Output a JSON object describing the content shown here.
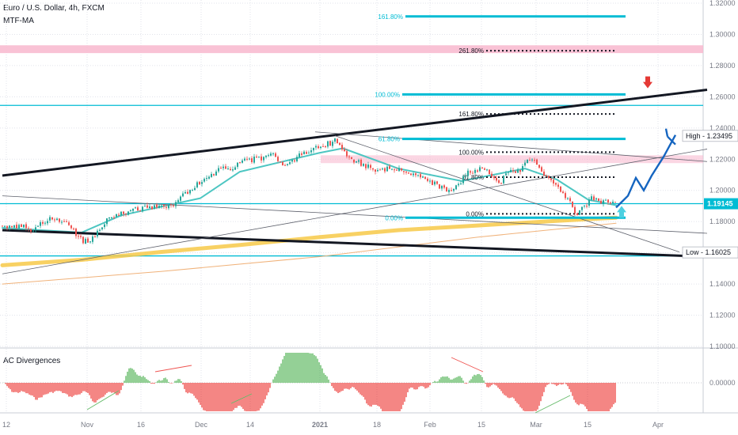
{
  "header": {
    "title": "Euro / U.S. Dollar, 4h, FXCM",
    "indicator": "MTF-MA",
    "oscillator": "AC Divergences"
  },
  "colors": {
    "background": "#ffffff",
    "grid": "#e1e3eb",
    "bull": "#26a69a",
    "bear": "#ef5350",
    "ma_fast": "#4dc6c2",
    "ma_slow": "#f7c948",
    "ma_thin": "#f0b27a",
    "support": "#00bcd4",
    "trend": "#131722",
    "pink_zone": "#f8bbd0",
    "projection": "#1565c0",
    "arrow_down": "#e53935",
    "arrow_up": "#4dd0e1",
    "osc_pos": "#66bb6a",
    "osc_neg": "#ef5350"
  },
  "chart_data": [
    {
      "type": "candlestick",
      "symbol": "Euro / U.S. Dollar",
      "timeframe": "4h",
      "source": "FXCM",
      "x_ticks": [
        "12",
        "Nov",
        "16",
        "Dec",
        "14",
        "2021",
        "18",
        "Feb",
        "15",
        "Mar",
        "15",
        "Apr"
      ],
      "y_ticks": [
        "1.32000",
        "1.30000",
        "1.28000",
        "1.26000",
        "1.24000",
        "1.22000",
        "1.20000",
        "1.18000",
        "1.16000",
        "1.14000",
        "1.12000",
        "1.10000"
      ],
      "ylim": [
        1.1,
        1.32
      ],
      "price_path": [
        {
          "i": 0,
          "p": 1.1775
        },
        {
          "i": 10,
          "p": 1.1765
        },
        {
          "i": 22,
          "p": 1.1778
        },
        {
          "i": 35,
          "p": 1.1745
        },
        {
          "i": 50,
          "p": 1.1795
        },
        {
          "i": 62,
          "p": 1.1825
        },
        {
          "i": 72,
          "p": 1.1805
        },
        {
          "i": 85,
          "p": 1.177
        },
        {
          "i": 97,
          "p": 1.169
        },
        {
          "i": 110,
          "p": 1.166
        },
        {
          "i": 118,
          "p": 1.1715
        },
        {
          "i": 130,
          "p": 1.18
        },
        {
          "i": 142,
          "p": 1.1845
        },
        {
          "i": 158,
          "p": 1.1865
        },
        {
          "i": 175,
          "p": 1.1885
        },
        {
          "i": 195,
          "p": 1.1895
        },
        {
          "i": 215,
          "p": 1.1905
        },
        {
          "i": 230,
          "p": 1.1975
        },
        {
          "i": 245,
          "p": 1.2035
        },
        {
          "i": 262,
          "p": 1.208
        },
        {
          "i": 275,
          "p": 1.2135
        },
        {
          "i": 290,
          "p": 1.2145
        },
        {
          "i": 305,
          "p": 1.2185
        },
        {
          "i": 318,
          "p": 1.22
        },
        {
          "i": 330,
          "p": 1.221
        },
        {
          "i": 342,
          "p": 1.223
        },
        {
          "i": 355,
          "p": 1.217
        },
        {
          "i": 370,
          "p": 1.2205
        },
        {
          "i": 382,
          "p": 1.224
        },
        {
          "i": 395,
          "p": 1.2265
        },
        {
          "i": 410,
          "p": 1.2295
        },
        {
          "i": 420,
          "p": 1.232
        },
        {
          "i": 430,
          "p": 1.2245
        },
        {
          "i": 445,
          "p": 1.219
        },
        {
          "i": 460,
          "p": 1.2155
        },
        {
          "i": 475,
          "p": 1.2115
        },
        {
          "i": 490,
          "p": 1.2145
        },
        {
          "i": 505,
          "p": 1.2125
        },
        {
          "i": 520,
          "p": 1.2095
        },
        {
          "i": 535,
          "p": 1.207
        },
        {
          "i": 550,
          "p": 1.203
        },
        {
          "i": 565,
          "p": 1.1985
        },
        {
          "i": 575,
          "p": 1.2035
        },
        {
          "i": 590,
          "p": 1.2125
        },
        {
          "i": 605,
          "p": 1.2135
        },
        {
          "i": 615,
          "p": 1.212
        },
        {
          "i": 628,
          "p": 1.205
        },
        {
          "i": 640,
          "p": 1.2115
        },
        {
          "i": 655,
          "p": 1.2135
        },
        {
          "i": 668,
          "p": 1.221
        },
        {
          "i": 680,
          "p": 1.2125
        },
        {
          "i": 692,
          "p": 1.2065
        },
        {
          "i": 705,
          "p": 1.1995
        },
        {
          "i": 715,
          "p": 1.1935
        },
        {
          "i": 725,
          "p": 1.184
        },
        {
          "i": 735,
          "p": 1.1905
        },
        {
          "i": 745,
          "p": 1.195
        },
        {
          "i": 755,
          "p": 1.1925
        },
        {
          "i": 765,
          "p": 1.1925
        },
        {
          "i": 775,
          "p": 1.192
        }
      ],
      "current_price": "1.19145",
      "price_labels": [
        {
          "label": "High",
          "value": "1.23495"
        },
        {
          "label": "Low",
          "value": "1.16025"
        }
      ],
      "fibonacci_upper": [
        {
          "label": "161.80%",
          "price": 1.3115
        },
        {
          "label": "100.00%",
          "price": 1.2615
        },
        {
          "label": "61.80%",
          "price": 1.233
        },
        {
          "label": "0.00%",
          "price": 1.1825
        }
      ],
      "fibonacci_lower": [
        {
          "label": "261.80%",
          "price": 1.2895
        },
        {
          "label": "161.80%",
          "price": 1.249
        },
        {
          "label": "100.00%",
          "price": 1.2245
        },
        {
          "label": "61.80%",
          "price": 1.2085
        },
        {
          "label": "0.00%",
          "price": 1.185
        }
      ],
      "support_levels": [
        1.2545,
        1.1915,
        1.158
      ],
      "resistance_zones": [
        [
          1.288,
          1.293
        ],
        [
          1.2175,
          1.2225
        ]
      ],
      "moving_averages": [
        {
          "role": "fast",
          "points": [
            [
              0,
              1.176
            ],
            [
              100,
              1.173
            ],
            [
              150,
              1.184
            ],
            [
              250,
              1.195
            ],
            [
              300,
              1.212
            ],
            [
              400,
              1.224
            ],
            [
              430,
              1.227
            ],
            [
              500,
              1.214
            ],
            [
              580,
              1.206
            ],
            [
              660,
              1.214
            ],
            [
              700,
              1.207
            ],
            [
              740,
              1.194
            ],
            [
              775,
              1.1905
            ]
          ]
        },
        {
          "role": "slow",
          "points": [
            [
              0,
              1.152
            ],
            [
              100,
              1.1555
            ],
            [
              200,
              1.1605
            ],
            [
              300,
              1.165
            ],
            [
              400,
              1.17
            ],
            [
              500,
              1.1745
            ],
            [
              600,
              1.1775
            ],
            [
              700,
              1.1805
            ],
            [
              775,
              1.1825
            ]
          ]
        },
        {
          "role": "thin",
          "points": [
            [
              0,
              1.14
            ],
            [
              200,
              1.148
            ],
            [
              400,
              1.1575
            ],
            [
              600,
              1.17
            ],
            [
              775,
              1.179
            ]
          ]
        }
      ],
      "trendlines": [
        {
          "weight": "heavy",
          "from": [
            0,
            1.2095
          ],
          "to": [
            890,
            1.2645
          ]
        },
        {
          "weight": "heavy",
          "from": [
            0,
            1.1745
          ],
          "to": [
            890,
            1.1575
          ]
        },
        {
          "weight": "light",
          "from": [
            0,
            1.1465
          ],
          "to": [
            890,
            1.2265
          ]
        },
        {
          "weight": "light",
          "from": [
            0,
            1.1965
          ],
          "to": [
            890,
            1.1725
          ]
        },
        {
          "weight": "light",
          "from": [
            395,
            1.2375
          ],
          "to": [
            890,
            1.2185
          ]
        },
        {
          "weight": "light",
          "from": [
            420,
            1.235
          ],
          "to": [
            855,
            1.1605
          ]
        }
      ],
      "projection": [
        [
          775,
          1.189
        ],
        [
          790,
          1.1965
        ],
        [
          800,
          1.208
        ],
        [
          810,
          1.2
        ],
        [
          820,
          1.2095
        ],
        [
          835,
          1.2215
        ],
        [
          850,
          1.2355
        ]
      ],
      "markers": [
        {
          "kind": "down-arrow",
          "at": [
            815,
            1.2685
          ]
        },
        {
          "kind": "up-arrow",
          "at": [
            782,
            1.187
          ]
        }
      ]
    },
    {
      "type": "bar",
      "title": "AC Divergences",
      "y_ticks": [
        "0.00000"
      ],
      "seed": 7
    }
  ]
}
